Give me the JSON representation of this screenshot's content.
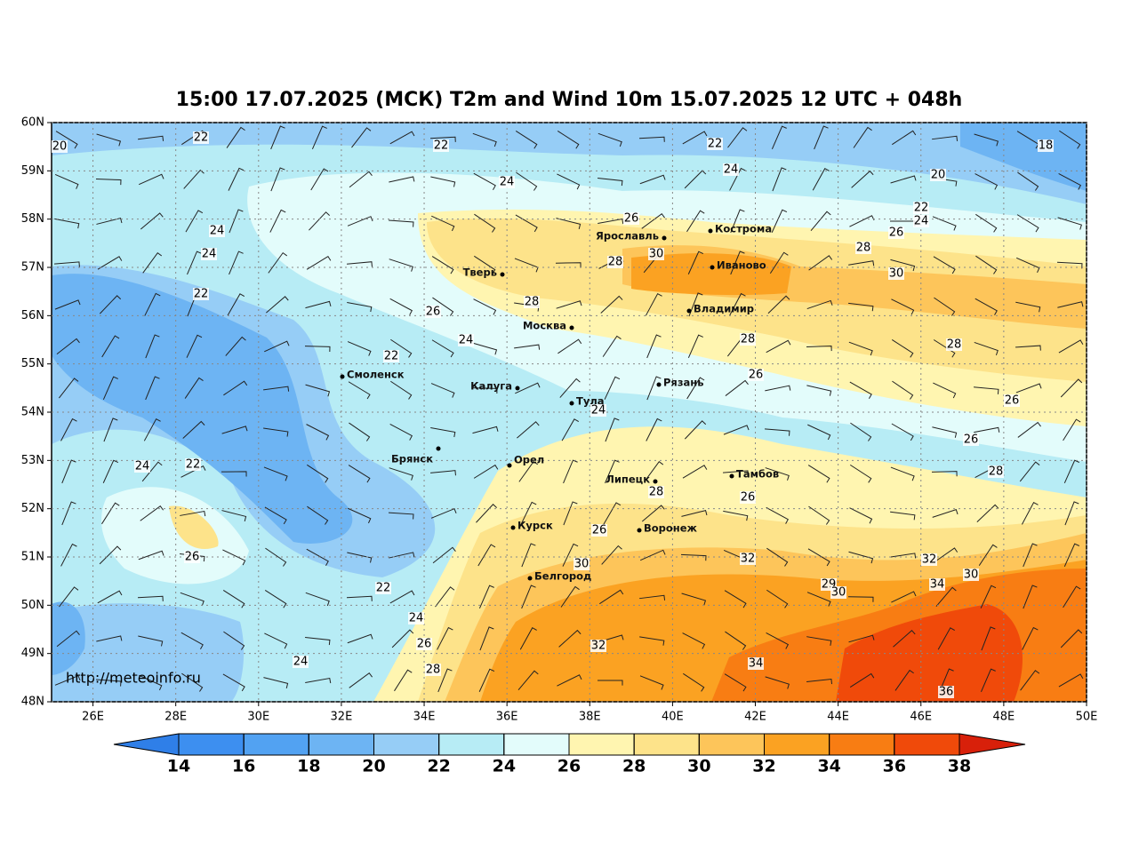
{
  "title": "15:00 17.07.2025 (МСК) T2m and Wind 10m 15.07.2025 12 UTC + 048h",
  "lonlim": [
    25,
    50
  ],
  "latlim": [
    48,
    60
  ],
  "lon_ticks": [
    {
      "value": 26,
      "label": "26E"
    },
    {
      "value": 28,
      "label": "28E"
    },
    {
      "value": 30,
      "label": "30E"
    },
    {
      "value": 32,
      "label": "32E"
    },
    {
      "value": 34,
      "label": "34E"
    },
    {
      "value": 36,
      "label": "36E"
    },
    {
      "value": 38,
      "label": "38E"
    },
    {
      "value": 40,
      "label": "40E"
    },
    {
      "value": 42,
      "label": "42E"
    },
    {
      "value": 44,
      "label": "44E"
    },
    {
      "value": 46,
      "label": "46E"
    },
    {
      "value": 48,
      "label": "48E"
    },
    {
      "value": 50,
      "label": "50E"
    }
  ],
  "lat_ticks": [
    {
      "value": 48,
      "label": "48N"
    },
    {
      "value": 49,
      "label": "49N"
    },
    {
      "value": 50,
      "label": "50N"
    },
    {
      "value": 51,
      "label": "51N"
    },
    {
      "value": 52,
      "label": "52N"
    },
    {
      "value": 53,
      "label": "53N"
    },
    {
      "value": 54,
      "label": "54N"
    },
    {
      "value": 55,
      "label": "55N"
    },
    {
      "value": 56,
      "label": "56N"
    },
    {
      "value": 57,
      "label": "57N"
    },
    {
      "value": 58,
      "label": "58N"
    },
    {
      "value": 59,
      "label": "59N"
    },
    {
      "value": 60,
      "label": "60N"
    }
  ],
  "cities": [
    "Кострома",
    "Ярославль",
    "Иваново",
    "Тверь",
    "Владимир",
    "Москва",
    "Смоленск",
    "Калуга",
    "Рязань",
    "Тула",
    "Брянск",
    "Орел",
    "Липецк",
    "Тамбов",
    "Курск",
    "Воронеж",
    "Белгород"
  ],
  "contour_labels": [
    20,
    22,
    22,
    22,
    18,
    24,
    20,
    24,
    22,
    24,
    26,
    26,
    24,
    24,
    28,
    30,
    28,
    30,
    22,
    28,
    26,
    24,
    28,
    28,
    22,
    26,
    26,
    24,
    26,
    24,
    22,
    28,
    28,
    26,
    26,
    26,
    32,
    32,
    30,
    30,
    22,
    29,
    30,
    34,
    24,
    26,
    32,
    24,
    34,
    28,
    36
  ],
  "colorbar": {
    "ticks": [
      14,
      16,
      18,
      20,
      22,
      24,
      26,
      28,
      30,
      32,
      34,
      36,
      38
    ],
    "colors": [
      "#2f7fe8",
      "#3d8ff0",
      "#52a2f2",
      "#6db4f3",
      "#96cdf6",
      "#b7ecf5",
      "#e3fcfb",
      "#fff5b0",
      "#fde38a",
      "#fdc55a",
      "#fba222",
      "#f87d13",
      "#f04a0a",
      "#d8200a"
    ]
  },
  "credit": "http://meteoinfo.ru"
}
